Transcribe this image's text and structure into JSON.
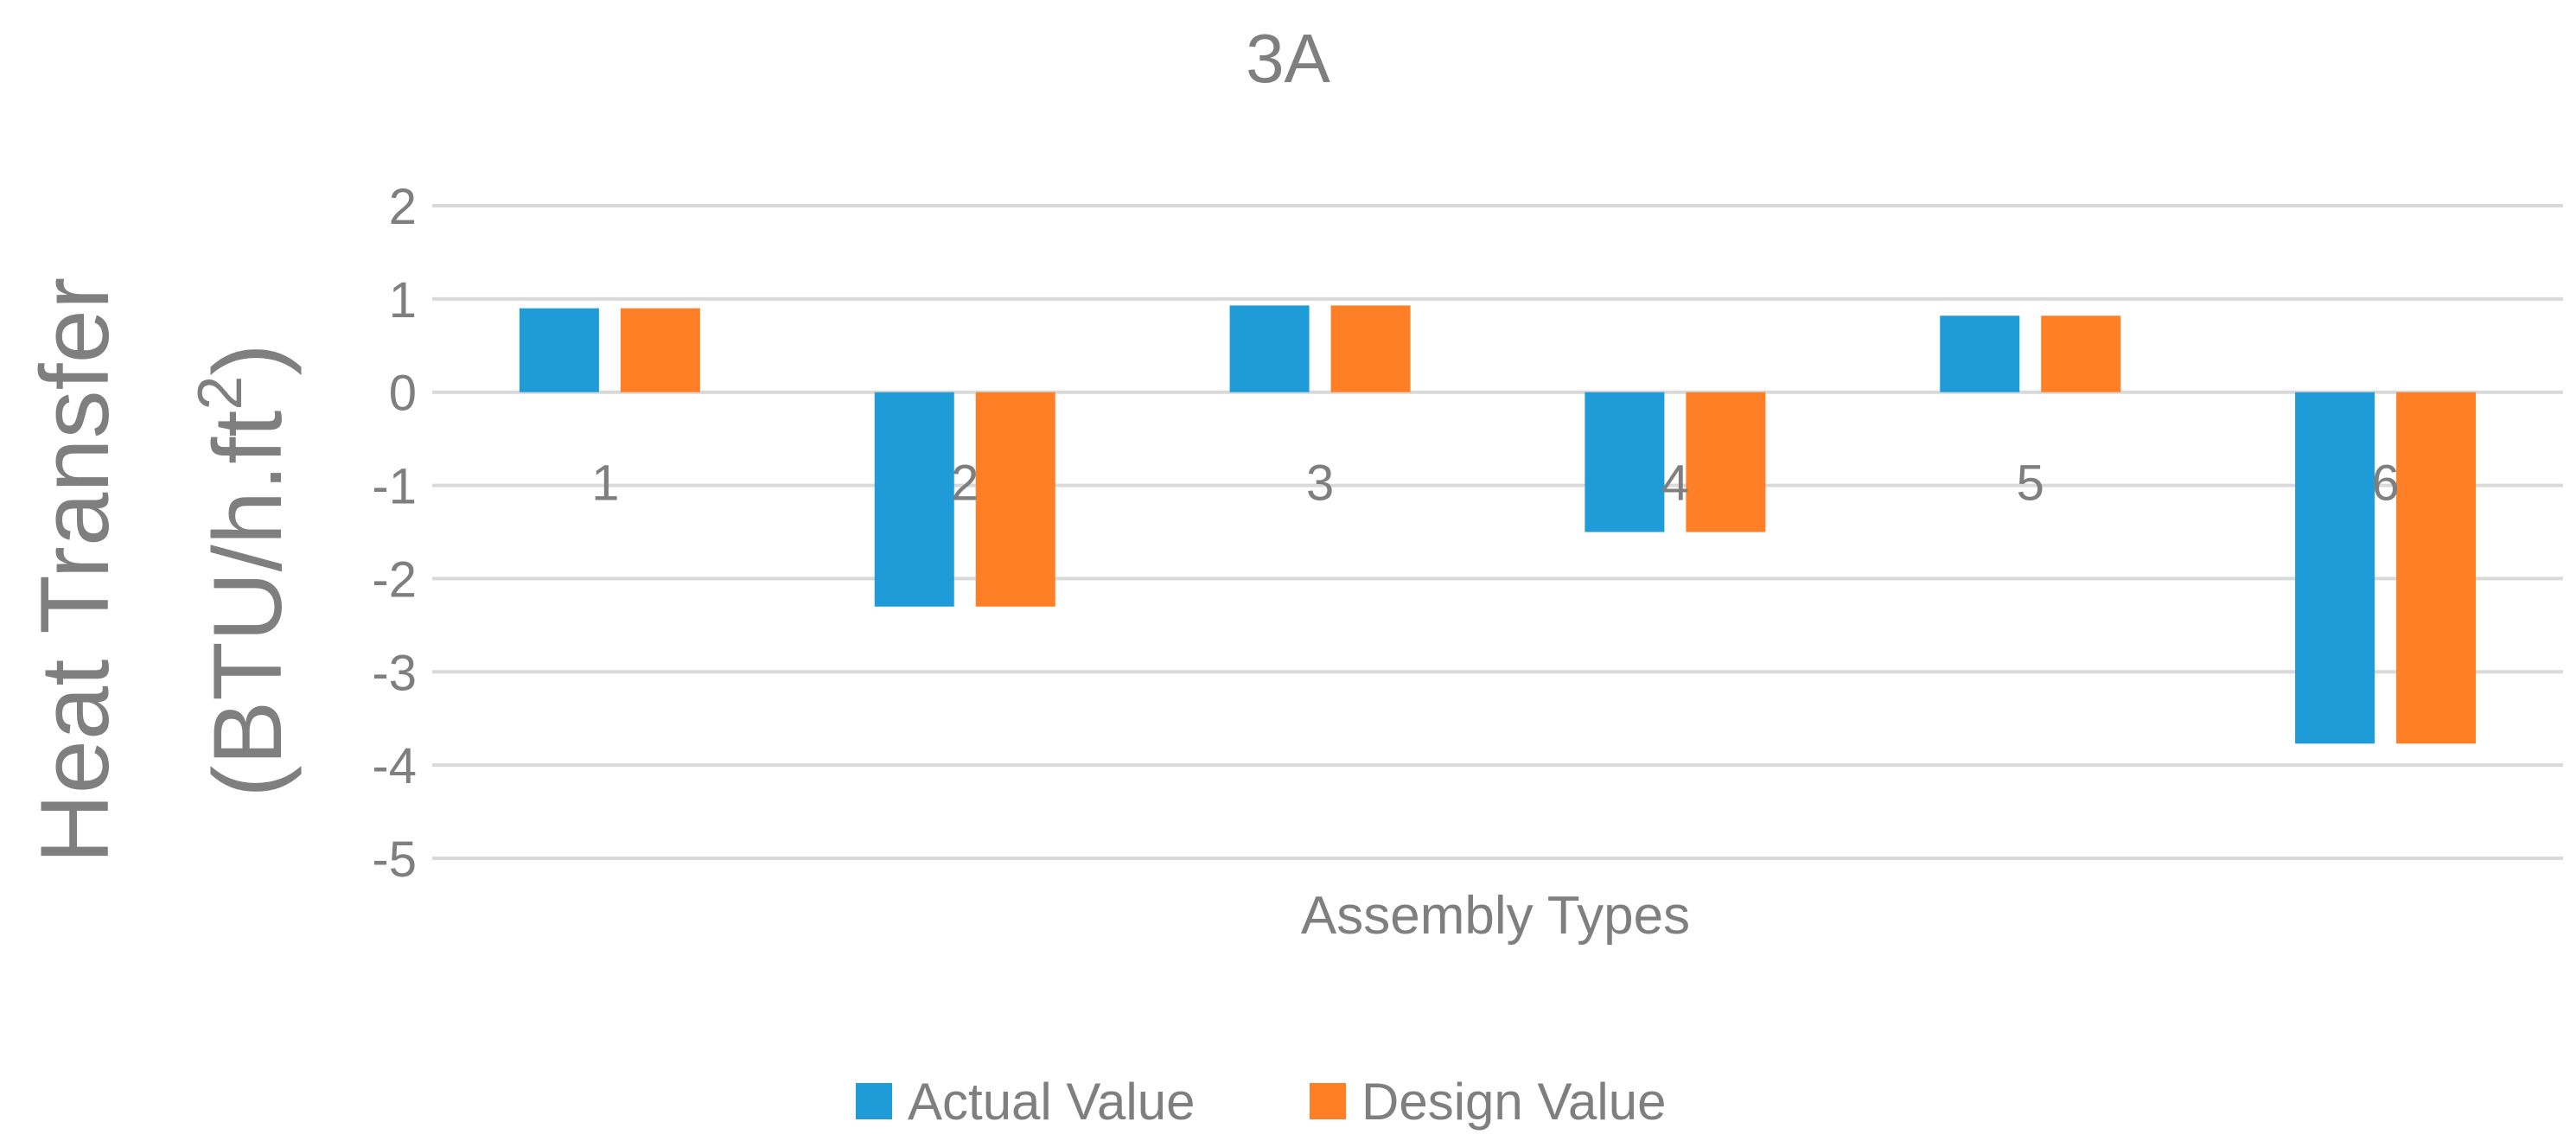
{
  "chart_data": {
    "type": "bar",
    "title": "3A",
    "xlabel": "Assembly Types",
    "ylabel_line1": "Heat Transfer",
    "ylabel_line2_base": "(BTU/h.ft",
    "ylabel_line2_sup": "2",
    "ylabel_line2_end": ")",
    "categories": [
      "1",
      "2",
      "3",
      "4",
      "5",
      "6"
    ],
    "ylim": [
      -5,
      2
    ],
    "yticks": [
      "2",
      "1",
      "0",
      "-1",
      "-2",
      "-3",
      "-4",
      "-5"
    ],
    "grid": true,
    "legend_position": "bottom",
    "series": [
      {
        "name": "Actual Value",
        "color": "#1f9bd7",
        "values": [
          0.9,
          -2.3,
          0.93,
          -1.5,
          0.82,
          -3.77
        ]
      },
      {
        "name": "Design Value",
        "color": "#ff7f27",
        "values": [
          0.9,
          -2.3,
          0.93,
          -1.5,
          0.82,
          -3.77
        ]
      }
    ]
  }
}
